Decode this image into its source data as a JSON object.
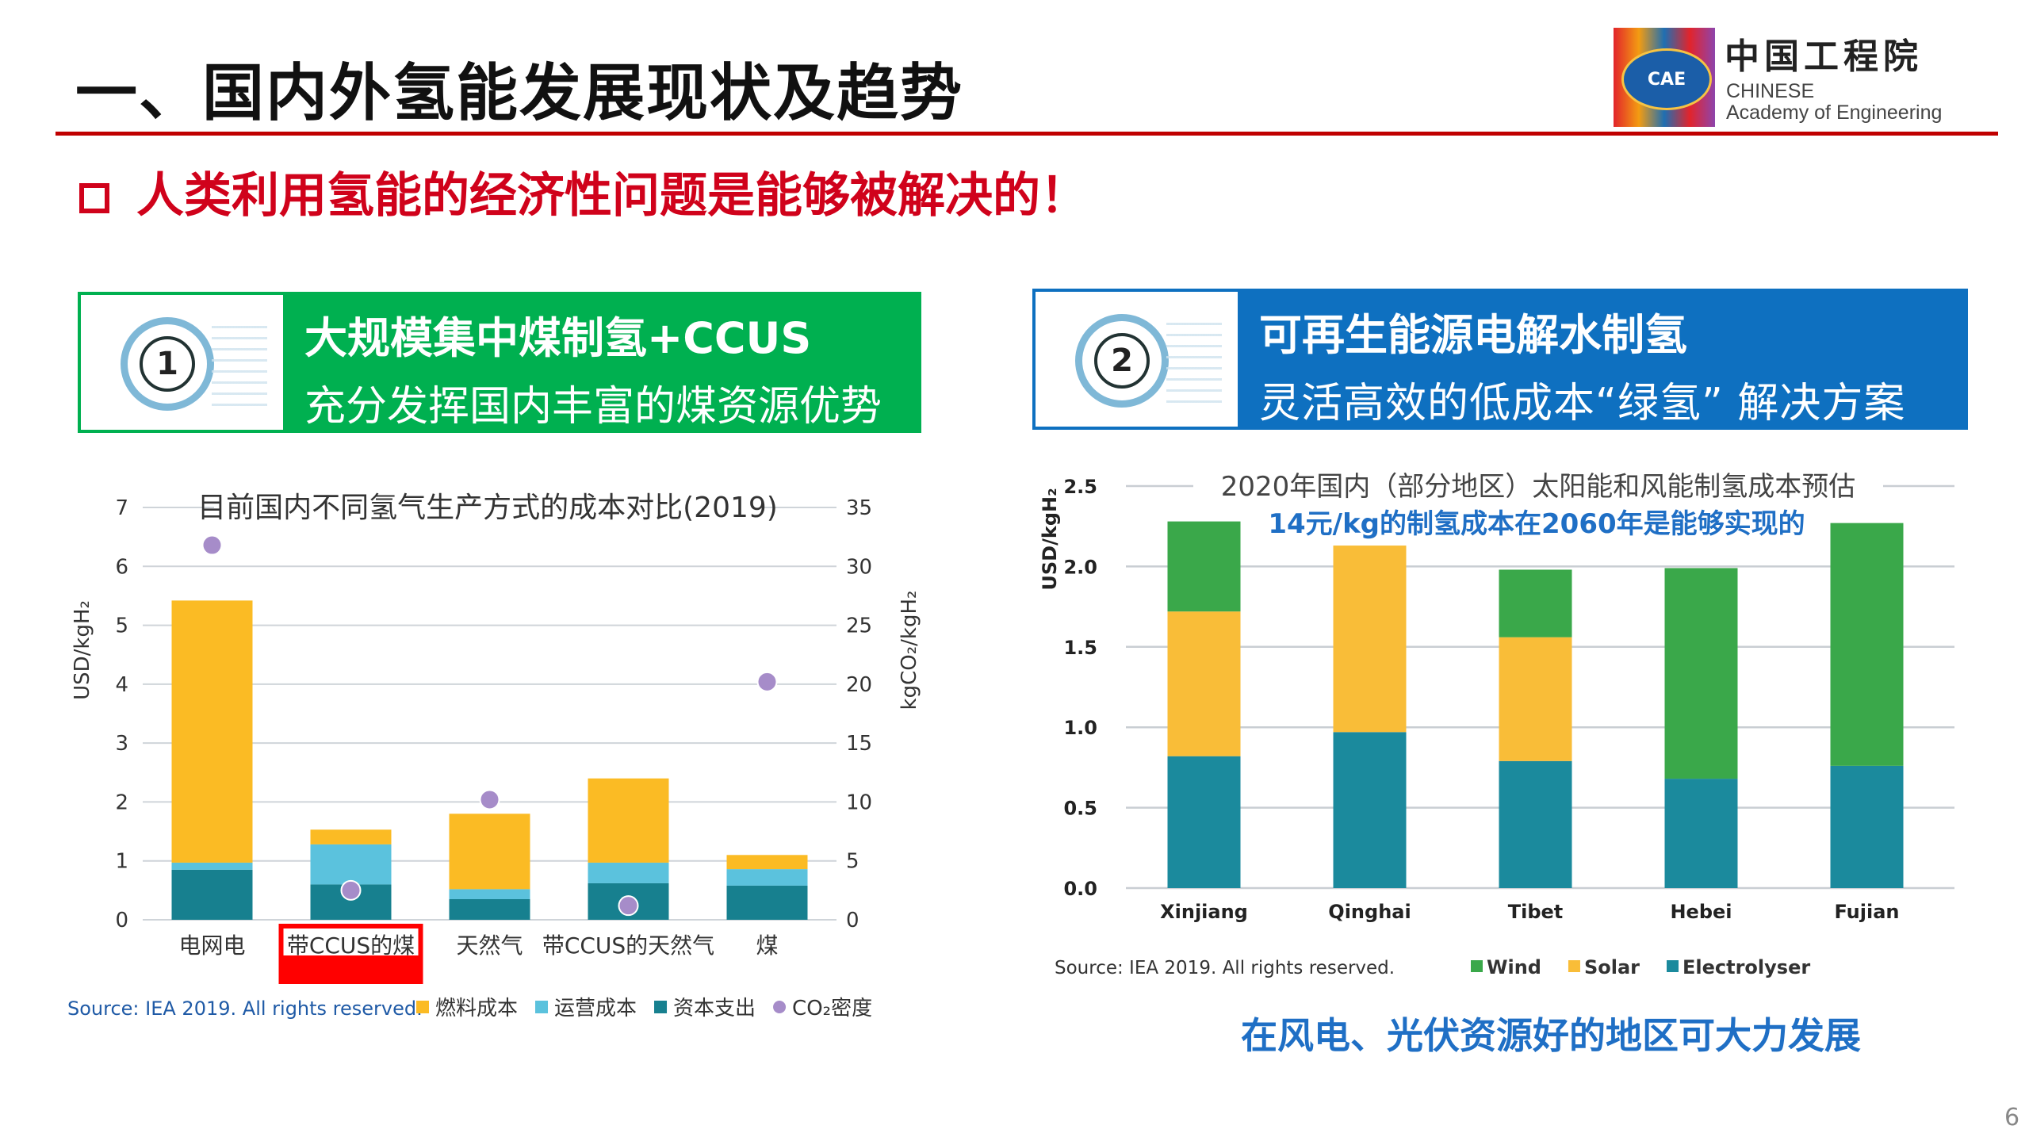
{
  "title": "一、国内外氢能发展现状及趋势",
  "logo": {
    "box_text": "CAE",
    "cn": "中国工程院",
    "en_line1": "CHINESE",
    "en_line2": "Academy of Engineering"
  },
  "subtitle": "人类利用氢能的经济性问题是能够被解决的！",
  "banners": [
    {
      "number": "1",
      "line1": "大规模集中煤制氢+CCUS",
      "line2": "充分发挥国内丰富的煤资源优势",
      "color": "#00b050"
    },
    {
      "number": "2",
      "line1": "可再生能源电解水制氢",
      "line2": "灵活高效的低成本“绿氢” 解决方案",
      "color": "#0e70c0"
    }
  ],
  "footnote_blue": "在风电、光伏资源好的地区可大力发展",
  "page_number": "6",
  "chart_data": [
    {
      "type": "bar",
      "stacked": true,
      "title": "目前国内不同氢气生产方式的成本对比(2019)",
      "ylabel": "USD/kgH₂",
      "ylabel_right": "kgCO₂/kgH₂",
      "ylim": [
        0,
        7
      ],
      "ylim_right": [
        0,
        35
      ],
      "yticks": [
        0,
        1,
        2,
        3,
        4,
        5,
        6,
        7
      ],
      "yticks_right": [
        0,
        5,
        10,
        15,
        20,
        25,
        30,
        35
      ],
      "grid": true,
      "categories": [
        "电网电",
        "带CCUS的煤",
        "天然气",
        "带CCUS的天然气",
        "煤"
      ],
      "highlight_category": "带CCUS的煤",
      "highlight_color": "#ff0000",
      "series": [
        {
          "name": "资本支出",
          "color": "#17808f",
          "values": [
            0.85,
            0.6,
            0.35,
            0.62,
            0.58
          ]
        },
        {
          "name": "运营成本",
          "color": "#5bc2dd",
          "values": [
            0.12,
            0.68,
            0.17,
            0.35,
            0.28
          ]
        },
        {
          "name": "燃料成本",
          "color": "#fbbb24",
          "values": [
            4.45,
            0.25,
            1.28,
            1.43,
            0.24
          ]
        }
      ],
      "scatter": {
        "name": "CO₂密度",
        "color": "#a68cc9",
        "axis": "right",
        "values": [
          31.8,
          2.5,
          10.2,
          1.2,
          20.2
        ]
      },
      "source": "Source: IEA 2019. All rights reserved.",
      "legend_placement": "bottom"
    },
    {
      "type": "bar",
      "stacked": true,
      "title": "2020年国内（部分地区）太阳能和风能制氢成本预估",
      "annotation": "14元/kg的制氢成本在2060年是能够实现的",
      "annotation_color": "#1f6fc5",
      "ylabel": "USD/kgH₂",
      "ylim": [
        0,
        2.5
      ],
      "yticks": [
        "0.0",
        "0.5",
        "1.0",
        "1.5",
        "2.0",
        "2.5"
      ],
      "grid": true,
      "categories": [
        "Xinjiang",
        "Qinghai",
        "Tibet",
        "Hebei",
        "Fujian"
      ],
      "series": [
        {
          "name": "Electrolyser",
          "color": "#1b8a9d",
          "values": [
            0.82,
            0.97,
            0.79,
            0.68,
            0.76
          ]
        },
        {
          "name": "Solar",
          "color": "#f9bd38",
          "values": [
            0.9,
            1.16,
            0.77,
            0.0,
            0.0
          ]
        },
        {
          "name": "Wind",
          "color": "#3aa84a",
          "values": [
            0.56,
            0.0,
            0.42,
            1.31,
            1.51
          ]
        }
      ],
      "source": "Source: IEA 2019. All rights reserved.",
      "legend_order": [
        "Wind",
        "Solar",
        "Electrolyser"
      ],
      "legend_placement": "bottom"
    }
  ]
}
